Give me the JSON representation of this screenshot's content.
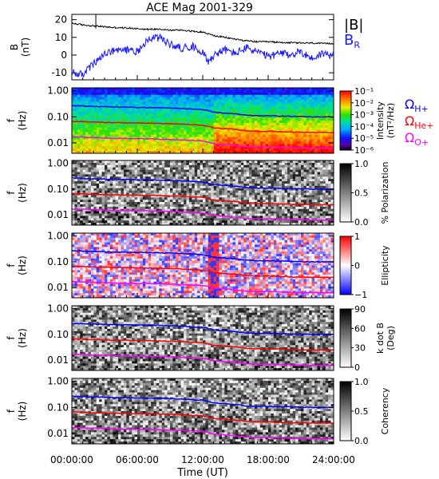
{
  "title": "ACE Mag 2001-329",
  "xaxis": {
    "title": "Time (UT)",
    "ticks": [
      "00:00:00",
      "06:00:00",
      "12:00:00",
      "18:00:00",
      "24:00:00"
    ]
  },
  "freq_ticks": [
    "1.00",
    "0.10",
    "0.01"
  ],
  "legends": {
    "btotal": "|B|",
    "br_main": "B",
    "br_sub": "R",
    "h_main": "Ω",
    "h_sub": "H+",
    "he_main": "Ω",
    "he_sub": "He+",
    "o_main": "Ω",
    "o_sub": "O+"
  },
  "colors": {
    "btotal": "#000000",
    "br": "#1a1aff",
    "h": "#0000ff",
    "he": "#ff0000",
    "o": "#ff00ff"
  },
  "chart_data": [
    {
      "type": "line",
      "panel": "B",
      "ylabel_main": "B",
      "ylabel_unit": "(nT)",
      "yticks": [
        "20",
        "10",
        "0",
        "-10"
      ],
      "ylim": [
        -14,
        23
      ],
      "xlim": [
        0,
        24
      ],
      "series": [
        {
          "name": "|B|",
          "x": [
            0,
            1,
            2,
            3,
            4,
            5,
            6,
            7,
            8,
            9,
            10,
            11,
            12,
            12.5,
            13,
            14,
            15,
            16,
            17,
            18,
            19,
            20,
            21,
            22,
            23,
            24
          ],
          "values": [
            18,
            17,
            16.5,
            16,
            15.5,
            15.3,
            15,
            14.5,
            14.8,
            14,
            14.2,
            13.5,
            13,
            12,
            11,
            10,
            9,
            8,
            7.5,
            7.5,
            7.2,
            7,
            6.8,
            6.8,
            6.5,
            6.5
          ]
        },
        {
          "name": "B",
          "x": [
            0,
            1,
            1.8,
            2.5,
            3,
            4,
            5,
            6,
            7,
            8,
            9,
            10,
            11,
            12,
            12.5,
            13,
            14,
            15,
            16,
            17,
            18,
            19,
            20,
            21,
            22,
            23,
            24
          ],
          "values": [
            -10,
            -11,
            -6,
            -3,
            1,
            2,
            3,
            2,
            9,
            10,
            6,
            4,
            5,
            2,
            -4,
            0,
            3,
            1,
            4,
            2,
            -1,
            1,
            0,
            2,
            -2,
            1,
            0
          ]
        }
      ]
    },
    {
      "type": "heatmap",
      "panel": "power",
      "ylabel_main": "f",
      "ylabel_unit": "(Hz)",
      "colorbar": {
        "title": "Intensity",
        "unit": "(nT²/Hz)",
        "scale": "log",
        "ticks": [
          "10⁻¹",
          "10⁻²",
          "10⁻³",
          "10⁻⁴",
          "10⁻⁵",
          "10⁻⁶"
        ],
        "colormap": "rainbow"
      }
    },
    {
      "type": "heatmap",
      "panel": "polarization",
      "ylabel_main": "f",
      "ylabel_unit": "(Hz)",
      "colorbar": {
        "title": "% Polarization",
        "ticks": [
          "1.0",
          "0.5",
          "0.0"
        ],
        "colormap": "grayscale"
      }
    },
    {
      "type": "heatmap",
      "panel": "ellipticity",
      "ylabel_main": "f",
      "ylabel_unit": "(Hz)",
      "colorbar": {
        "title": "Ellipticity",
        "ticks": [
          "1",
          "0",
          "−1"
        ],
        "colormap": "red-white-blue"
      }
    },
    {
      "type": "heatmap",
      "panel": "kdotb",
      "ylabel_main": "f",
      "ylabel_unit": "(Hz)",
      "colorbar": {
        "title": "k dot B",
        "unit": "(Deg)",
        "ticks": [
          "90",
          "60",
          "30",
          "0"
        ],
        "colormap": "grayscale"
      }
    },
    {
      "type": "heatmap",
      "panel": "coherency",
      "ylabel_main": "f",
      "ylabel_unit": "(Hz)",
      "colorbar": {
        "title": "Coherency",
        "ticks": [
          "1.0",
          "0.5",
          "0.0"
        ],
        "colormap": "grayscale"
      }
    }
  ],
  "gyrofrequency_lines": {
    "x": [
      0,
      2,
      4,
      6,
      8,
      10,
      11,
      12,
      12.5,
      13,
      14,
      15,
      16,
      17,
      18,
      20,
      22,
      24
    ],
    "h_plus_hz": [
      0.27,
      0.25,
      0.24,
      0.23,
      0.225,
      0.21,
      0.2,
      0.19,
      0.17,
      0.15,
      0.14,
      0.13,
      0.115,
      0.11,
      0.11,
      0.105,
      0.1,
      0.1
    ],
    "he_plus_hz": [
      0.068,
      0.063,
      0.06,
      0.058,
      0.056,
      0.053,
      0.05,
      0.048,
      0.043,
      0.038,
      0.035,
      0.033,
      0.029,
      0.028,
      0.028,
      0.026,
      0.025,
      0.025
    ],
    "o_plus_hz": [
      0.017,
      0.016,
      0.015,
      0.0145,
      0.014,
      0.013,
      0.0125,
      0.012,
      0.0108,
      0.0095,
      0.0088,
      0.0082,
      0.0072,
      0.007,
      0.007,
      0.0066,
      0.0063,
      0.0063
    ]
  }
}
